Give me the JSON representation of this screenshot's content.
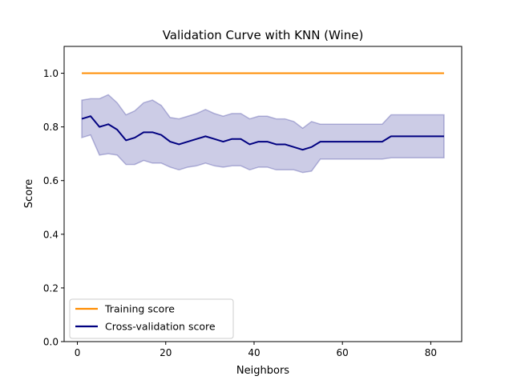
{
  "chart_data": {
    "type": "line",
    "title": "Validation Curve with KNN (Wine)",
    "xlabel": "Neighbors",
    "ylabel": "Score",
    "xlim": [
      -3,
      87
    ],
    "ylim": [
      0.0,
      1.1
    ],
    "xticks": [
      "0",
      "20",
      "40",
      "60",
      "80"
    ],
    "yticks": [
      "0.0",
      "0.2",
      "0.4",
      "0.6",
      "0.8",
      "1.0"
    ],
    "legend_position": "lower-left",
    "x": [
      1,
      3,
      5,
      7,
      9,
      11,
      13,
      15,
      17,
      19,
      21,
      23,
      25,
      27,
      29,
      31,
      33,
      35,
      37,
      39,
      41,
      43,
      45,
      47,
      49,
      51,
      53,
      55,
      57,
      59,
      61,
      63,
      65,
      67,
      69,
      71,
      73,
      75,
      77,
      79,
      81,
      83
    ],
    "series": [
      {
        "name": "Training score",
        "color": "#ff8c00",
        "values": [
          1,
          1,
          1,
          1,
          1,
          1,
          1,
          1,
          1,
          1,
          1,
          1,
          1,
          1,
          1,
          1,
          1,
          1,
          1,
          1,
          1,
          1,
          1,
          1,
          1,
          1,
          1,
          1,
          1,
          1,
          1,
          1,
          1,
          1,
          1,
          1,
          1,
          1,
          1,
          1,
          1,
          1
        ]
      },
      {
        "name": "Cross-validation score",
        "color": "#000080",
        "band_color": "#000080",
        "values": [
          0.83,
          0.84,
          0.8,
          0.81,
          0.79,
          0.75,
          0.76,
          0.78,
          0.78,
          0.77,
          0.745,
          0.735,
          0.745,
          0.755,
          0.765,
          0.755,
          0.745,
          0.755,
          0.755,
          0.735,
          0.745,
          0.745,
          0.735,
          0.735,
          0.725,
          0.715,
          0.725,
          0.745,
          0.745,
          0.745,
          0.745,
          0.745,
          0.745,
          0.745,
          0.745,
          0.765,
          0.765,
          0.765,
          0.765,
          0.765,
          0.765,
          0.765
        ],
        "upper": [
          0.9,
          0.905,
          0.905,
          0.92,
          0.89,
          0.845,
          0.86,
          0.89,
          0.9,
          0.88,
          0.835,
          0.83,
          0.84,
          0.85,
          0.865,
          0.85,
          0.84,
          0.85,
          0.85,
          0.83,
          0.84,
          0.84,
          0.83,
          0.83,
          0.82,
          0.795,
          0.82,
          0.81,
          0.81,
          0.81,
          0.81,
          0.81,
          0.81,
          0.81,
          0.81,
          0.845,
          0.845,
          0.845,
          0.845,
          0.845,
          0.845,
          0.845
        ],
        "lower": [
          0.76,
          0.77,
          0.695,
          0.7,
          0.695,
          0.66,
          0.66,
          0.675,
          0.665,
          0.665,
          0.65,
          0.64,
          0.65,
          0.655,
          0.665,
          0.655,
          0.65,
          0.655,
          0.655,
          0.64,
          0.65,
          0.65,
          0.64,
          0.64,
          0.64,
          0.63,
          0.635,
          0.68,
          0.68,
          0.68,
          0.68,
          0.68,
          0.68,
          0.68,
          0.68,
          0.685,
          0.685,
          0.685,
          0.685,
          0.685,
          0.685,
          0.685
        ]
      }
    ]
  }
}
